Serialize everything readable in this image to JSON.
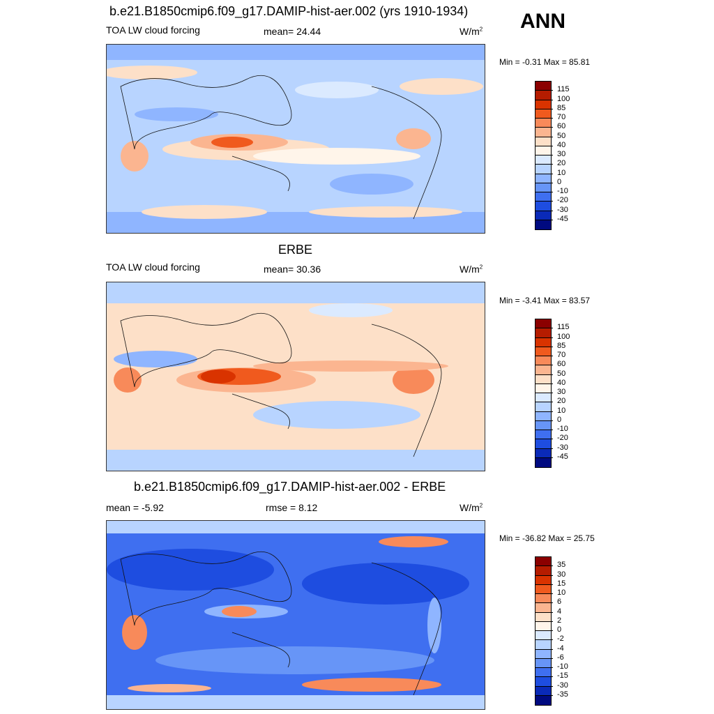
{
  "season": "ANN",
  "panels": [
    {
      "title": "b.e21.B1850cmip6.f09_g17.DAMIP-hist-aer.002 (yrs 1910-1934)",
      "left": "TOA LW cloud forcing",
      "center": "mean=  24.44",
      "units": "W/m",
      "units_sup": "2",
      "minmax": "Min =  -0.31 Max =  85.81",
      "kind": "model"
    },
    {
      "title": "ERBE",
      "left": "TOA LW cloud forcing",
      "center": "mean=  30.36",
      "units": "W/m",
      "units_sup": "2",
      "minmax": "Min =  -3.41 Max =  83.57",
      "kind": "obs"
    },
    {
      "title": "b.e21.B1850cmip6.f09_g17.DAMIP-hist-aer.002 - ERBE",
      "left": "mean =  -5.92",
      "center": "rmse =   8.12",
      "units": "W/m",
      "units_sup": "2",
      "minmax": "Min = -36.82 Max =  25.75",
      "kind": "diff"
    }
  ],
  "colorbars": {
    "field": {
      "labels": [
        "115",
        "100",
        "85",
        "70",
        "60",
        "50",
        "40",
        "30",
        "20",
        "10",
        "0",
        "-10",
        "-20",
        "-30",
        "-45"
      ],
      "colors": [
        "#8b0000",
        "#b51c00",
        "#d93300",
        "#f05a1e",
        "#f88a5a",
        "#fbb590",
        "#fde0c8",
        "#fff5ea",
        "#dbeaff",
        "#b8d4ff",
        "#8fb5ff",
        "#6795f7",
        "#3f6ff0",
        "#1e4de0",
        "#0a2ab8",
        "#000a80"
      ]
    },
    "diff": {
      "labels": [
        "35",
        "30",
        "15",
        "10",
        "6",
        "4",
        "2",
        "0",
        "-2",
        "-4",
        "-6",
        "-10",
        "-15",
        "-30",
        "-35"
      ],
      "colors": [
        "#8b0000",
        "#b51c00",
        "#d93300",
        "#f05a1e",
        "#f88a5a",
        "#fbb590",
        "#fde0c8",
        "#fff5ea",
        "#dbeaff",
        "#b8d4ff",
        "#8fb5ff",
        "#6795f7",
        "#3f6ff0",
        "#1e4de0",
        "#0a2ab8",
        "#000a80"
      ]
    }
  }
}
